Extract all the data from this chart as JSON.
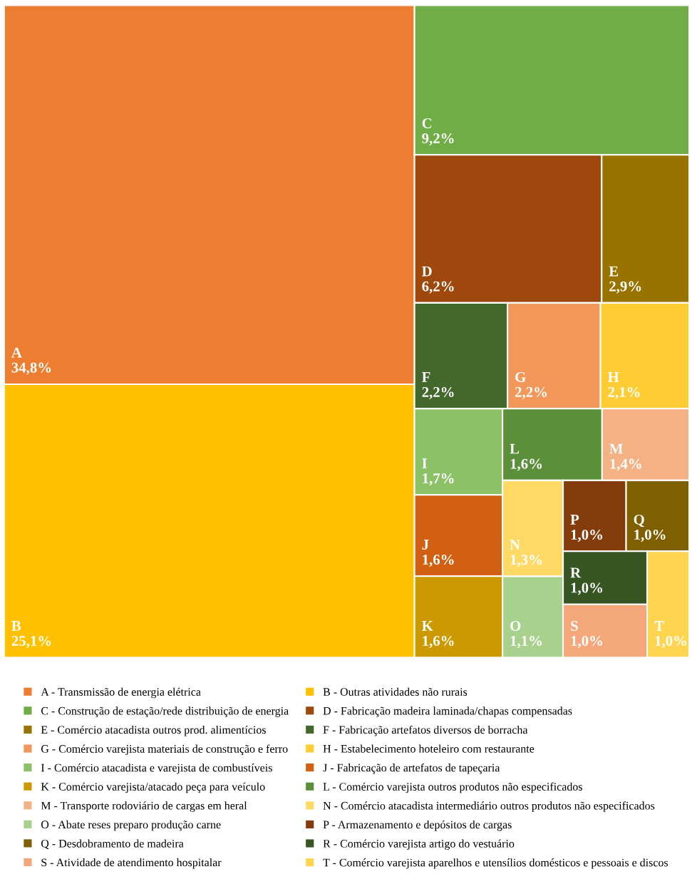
{
  "chart_data": {
    "type": "other",
    "categories": [
      "A",
      "B",
      "C",
      "D",
      "E",
      "F",
      "G",
      "H",
      "I",
      "J",
      "K",
      "L",
      "M",
      "N",
      "O",
      "P",
      "Q",
      "R",
      "S",
      "T"
    ],
    "values": [
      34.8,
      25.1,
      9.2,
      6.2,
      2.9,
      2.2,
      2.2,
      2.1,
      1.7,
      1.6,
      1.6,
      1.6,
      1.4,
      1.3,
      1.1,
      1.0,
      1.0,
      1.0,
      1.0,
      1.0
    ],
    "value_labels": [
      "34,8%",
      "25,1%",
      "9,2%",
      "6,2%",
      "2,9%",
      "2,2%",
      "2,2%",
      "2,1%",
      "1,7%",
      "1,6%",
      "1,6%",
      "1,6%",
      "1,4%",
      "1,3%",
      "1,1%",
      "1,0%",
      "1,0%",
      "1,0%",
      "1,0%",
      "1,0%"
    ],
    "colors": [
      "#ed7d31",
      "#ffc000",
      "#70ad47",
      "#9e480e",
      "#997300",
      "#43682b",
      "#f1975a",
      "#ffcd33",
      "#8cc168",
      "#d26012",
      "#cc9a00",
      "#5b8f3a",
      "#f4b183",
      "#ffd966",
      "#a9d18e",
      "#843c0c",
      "#7f6000",
      "#375623",
      "#f4a77a",
      "#ffd54f"
    ],
    "annotations": [
      "A - Transmissão de energia elétrica",
      "B - Outras atividades não rurais",
      "C - Construção de estação/rede distribuição de energia",
      "D - Fabricação madeira laminada/chapas compensadas",
      "E - Comércio atacadista outros prod. alimentícios",
      "F - Fabricação artefatos diversos de borracha",
      "G - Comércio varejista materiais de construção e ferro",
      "H - Estabelecimento hoteleiro com restaurante",
      "I - Comércio atacadista e varejista de combustíveis",
      "J - Fabricação de artefatos de tapeçaria",
      "K - Comércio varejista/atacado peça para veículo",
      "L - Comércio varejista outros produtos não especificados",
      "M - Transporte rodoviário de cargas em heral",
      "N - Comércio atacadista intermediário outros produtos não especificados",
      "O - Abate reses preparo produção carne",
      "P - Armazenamento e depósitos de cargas",
      "Q - Desdobramento de madeira",
      "R - Comércio varejista artigo do vestuário",
      "S - Atividade de atendimento hospitalar",
      "T - Comércio varejista aparelhos e utensílios domésticos e pessoais e discos"
    ]
  }
}
